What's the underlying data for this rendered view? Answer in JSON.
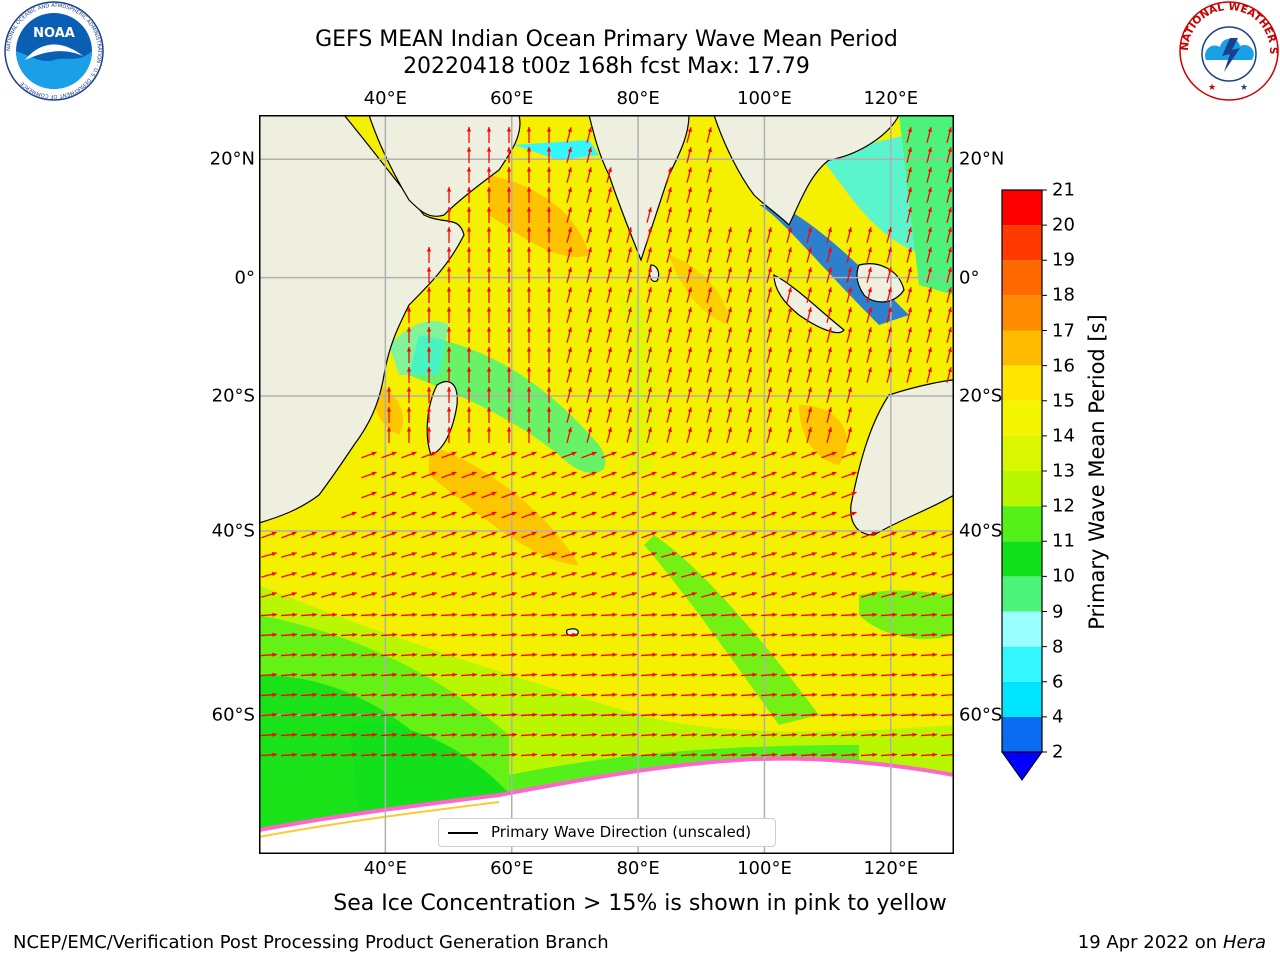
{
  "title": {
    "line1": "GEFS MEAN Indian Ocean Primary Wave Mean Period",
    "line2": "20220418 t00z 168h fcst   Max: 17.79"
  },
  "map": {
    "lon_labels": [
      "40°E",
      "60°E",
      "80°E",
      "100°E",
      "120°E"
    ],
    "lon_values": [
      40,
      60,
      80,
      100,
      120
    ],
    "lat_labels": [
      "20°N",
      "0°",
      "20°S",
      "40°S",
      "60°S"
    ],
    "lat_values": [
      20,
      0,
      -20,
      -40,
      -60
    ],
    "lon_range": [
      20,
      130
    ],
    "lat_range": [
      -70,
      27
    ],
    "grid": true,
    "land_color": "#efefdf",
    "sea_ice_color": "#ff66cc"
  },
  "legend": {
    "label": "Primary Wave Direction (unscaled)",
    "placement": "lower-center"
  },
  "colorbar": {
    "title": "Primary Wave Mean Period [s]",
    "tick_labels": [
      "2",
      "4",
      "6",
      "8",
      "9",
      "10",
      "11",
      "12",
      "13",
      "14",
      "15",
      "16",
      "17",
      "18",
      "19",
      "20",
      "21"
    ],
    "colors": [
      "#0a6cf0",
      "#00e5ff",
      "#33f6ff",
      "#99ffff",
      "#4df27a",
      "#11e01a",
      "#55f01a",
      "#b9f700",
      "#d9f800",
      "#f5f500",
      "#ffe600",
      "#ffbb00",
      "#ff8c00",
      "#ff6a00",
      "#ff3a00",
      "#ff0000"
    ],
    "under_color": "#0000ff"
  },
  "annotation": "Sea Ice Concentration > 15% is shown in pink to yellow",
  "footer": {
    "left": "NCEP/EMC/Verification Post Processing Product Generation Branch",
    "date": "19 Apr 2022 on ",
    "machine": "Hera"
  },
  "logos": {
    "noaa_text": "NOAA",
    "noaa_ring_text": "NATIONAL OCEANIC AND ATMOSPHERIC ADMINISTRATION · U.S. DEPARTMENT OF COMMERCE",
    "nws_ring_text": "NATIONAL WEATHER SERVICE"
  },
  "arrow_color": "#ff0000"
}
